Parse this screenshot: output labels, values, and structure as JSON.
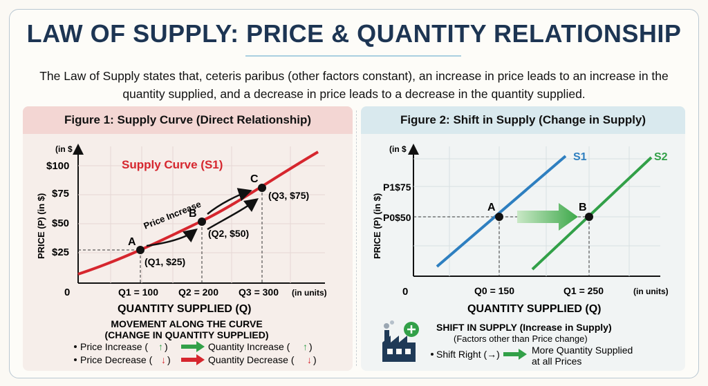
{
  "title": "LAW OF SUPPLY: PRICE & QUANTITY RELATIONSHIP",
  "intro": "The Law of Supply states that, ceteris paribus (other factors constant), an increase in price leads to an increase in the quantity supplied, and a decrease in price leads to a decrease in the quantity supplied.",
  "figure1": {
    "heading": "Figure 1: Supply Curve (Direct Relationship)",
    "y_unit": "(in $",
    "y_axis_label": "PRICE (P) (in $)",
    "x_axis_label": "QUANTITY SUPPLIED (Q)",
    "x_unit": "(in units)",
    "origin": "0",
    "curve_label": "Supply Curve (S1)",
    "annotation": "Price Increase",
    "y_ticks": [
      "$25",
      "$50",
      "$75",
      "$100"
    ],
    "x_ticks": [
      "Q1 = 100",
      "Q2 = 200",
      "Q3 = 300"
    ],
    "points": [
      {
        "name": "A",
        "label": "(Q1, $25)"
      },
      {
        "name": "B",
        "label": "(Q2, $50)"
      },
      {
        "name": "C",
        "label": "(Q3, $75)"
      }
    ],
    "movement_title_1": "MOVEMENT ALONG THE CURVE",
    "movement_title_2": "(CHANGE IN QUANTITY SUPPLIED)",
    "movement_rows": [
      {
        "left": "Price Increase (",
        "right": "Quantity Increase ("
      },
      {
        "left": "Price Decrease (",
        "right": "Quantity Decrease ("
      }
    ]
  },
  "figure2": {
    "heading": "Figure 2: Shift in Supply (Change in Supply)",
    "y_unit": "(in $",
    "y_axis_label": "PRICE (P) (in $)",
    "x_axis_label": "QUANTITY SUPPLIED (Q)",
    "x_unit": "(in units)",
    "origin": "0",
    "y_ticks": [
      "P1$75",
      "P0$50"
    ],
    "x_ticks": [
      "Q0 = 150",
      "Q1 = 250"
    ],
    "curves": [
      "S1",
      "S2"
    ],
    "points": [
      "A",
      "B"
    ],
    "shift_title": "SHIFT IN SUPPLY (Increase in Supply)",
    "shift_subtitle": "(Factors other than Price change)",
    "shift_left": "Shift Right (→)",
    "shift_right_1": "More Quantity Supplied",
    "shift_right_2": "at all Prices"
  },
  "chart_data": [
    {
      "type": "line",
      "title": "Figure 1: Supply Curve (Direct Relationship)",
      "xlabel": "QUANTITY SUPPLIED (Q)",
      "ylabel": "PRICE (P) (in $)",
      "series": [
        {
          "name": "Supply Curve (S1)",
          "x": [
            100,
            200,
            300
          ],
          "y": [
            25,
            50,
            75
          ]
        }
      ],
      "ylim": [
        0,
        100
      ]
    },
    {
      "type": "line",
      "title": "Figure 2: Shift in Supply (Change in Supply)",
      "xlabel": "QUANTITY SUPPLIED (Q)",
      "ylabel": "PRICE (P) (in $)",
      "series": [
        {
          "name": "S1",
          "x": [
            150
          ],
          "y": [
            50
          ]
        },
        {
          "name": "S2",
          "x": [
            250
          ],
          "y": [
            50
          ]
        }
      ]
    }
  ],
  "colors": {
    "supply_red": "#d6262e",
    "s1_blue": "#2e7fc0",
    "s2_green": "#32a048",
    "navy": "#1d3553"
  }
}
